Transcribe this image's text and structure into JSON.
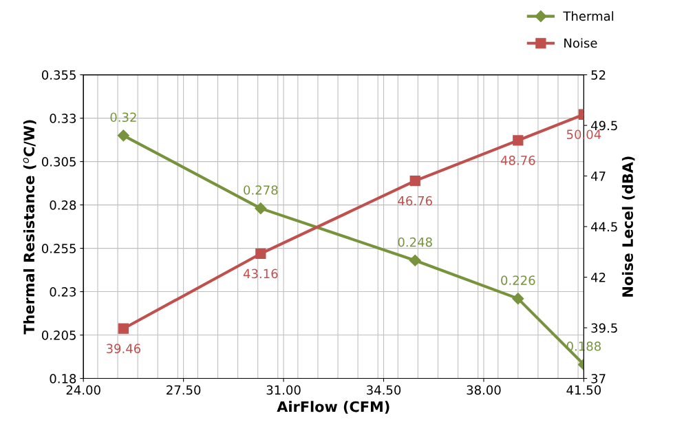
{
  "chart_data": {
    "type": "line",
    "xlabel": "AirFlow (CFM)",
    "ylabel": "Thermal Resistance ($^{o}$C/W)",
    "y2label": "Noise Lecel (dBA)",
    "xlim": [
      24,
      41.5
    ],
    "xticks": [
      {
        "value": 24,
        "label": "24.00"
      },
      {
        "value": 27.5,
        "label": "27.50"
      },
      {
        "value": 31,
        "label": "31.00"
      },
      {
        "value": 34.5,
        "label": "34.50"
      },
      {
        "value": 38,
        "label": "38.00"
      },
      {
        "value": 41.5,
        "label": "41.50"
      }
    ],
    "ylim": [
      0.18,
      0.355
    ],
    "yticks": [
      0.18,
      0.205,
      0.23,
      0.255,
      0.28,
      0.305,
      0.33,
      0.355
    ],
    "y2lim": [
      37,
      52
    ],
    "y2ticks": [
      37,
      39.5,
      42,
      44.5,
      47,
      49.5,
      52
    ],
    "grid": true,
    "legend": "top right",
    "data_labels": true,
    "line_style": "solid",
    "series": [
      {
        "name": "Thermal",
        "color": "#77933c",
        "marker": "diamond",
        "x": [
          25.4,
          30.2,
          35.6,
          39.2,
          41.5
        ],
        "values": [
          0.32,
          0.278,
          0.248,
          0.226,
          0.188
        ]
      },
      {
        "name": "Noise",
        "color": "#c0504d",
        "marker": "square",
        "axis": "y2",
        "x": [
          25.4,
          30.2,
          35.6,
          39.2,
          41.5
        ],
        "values": [
          39.46,
          43.16,
          46.76,
          48.76,
          50.04
        ]
      }
    ]
  }
}
